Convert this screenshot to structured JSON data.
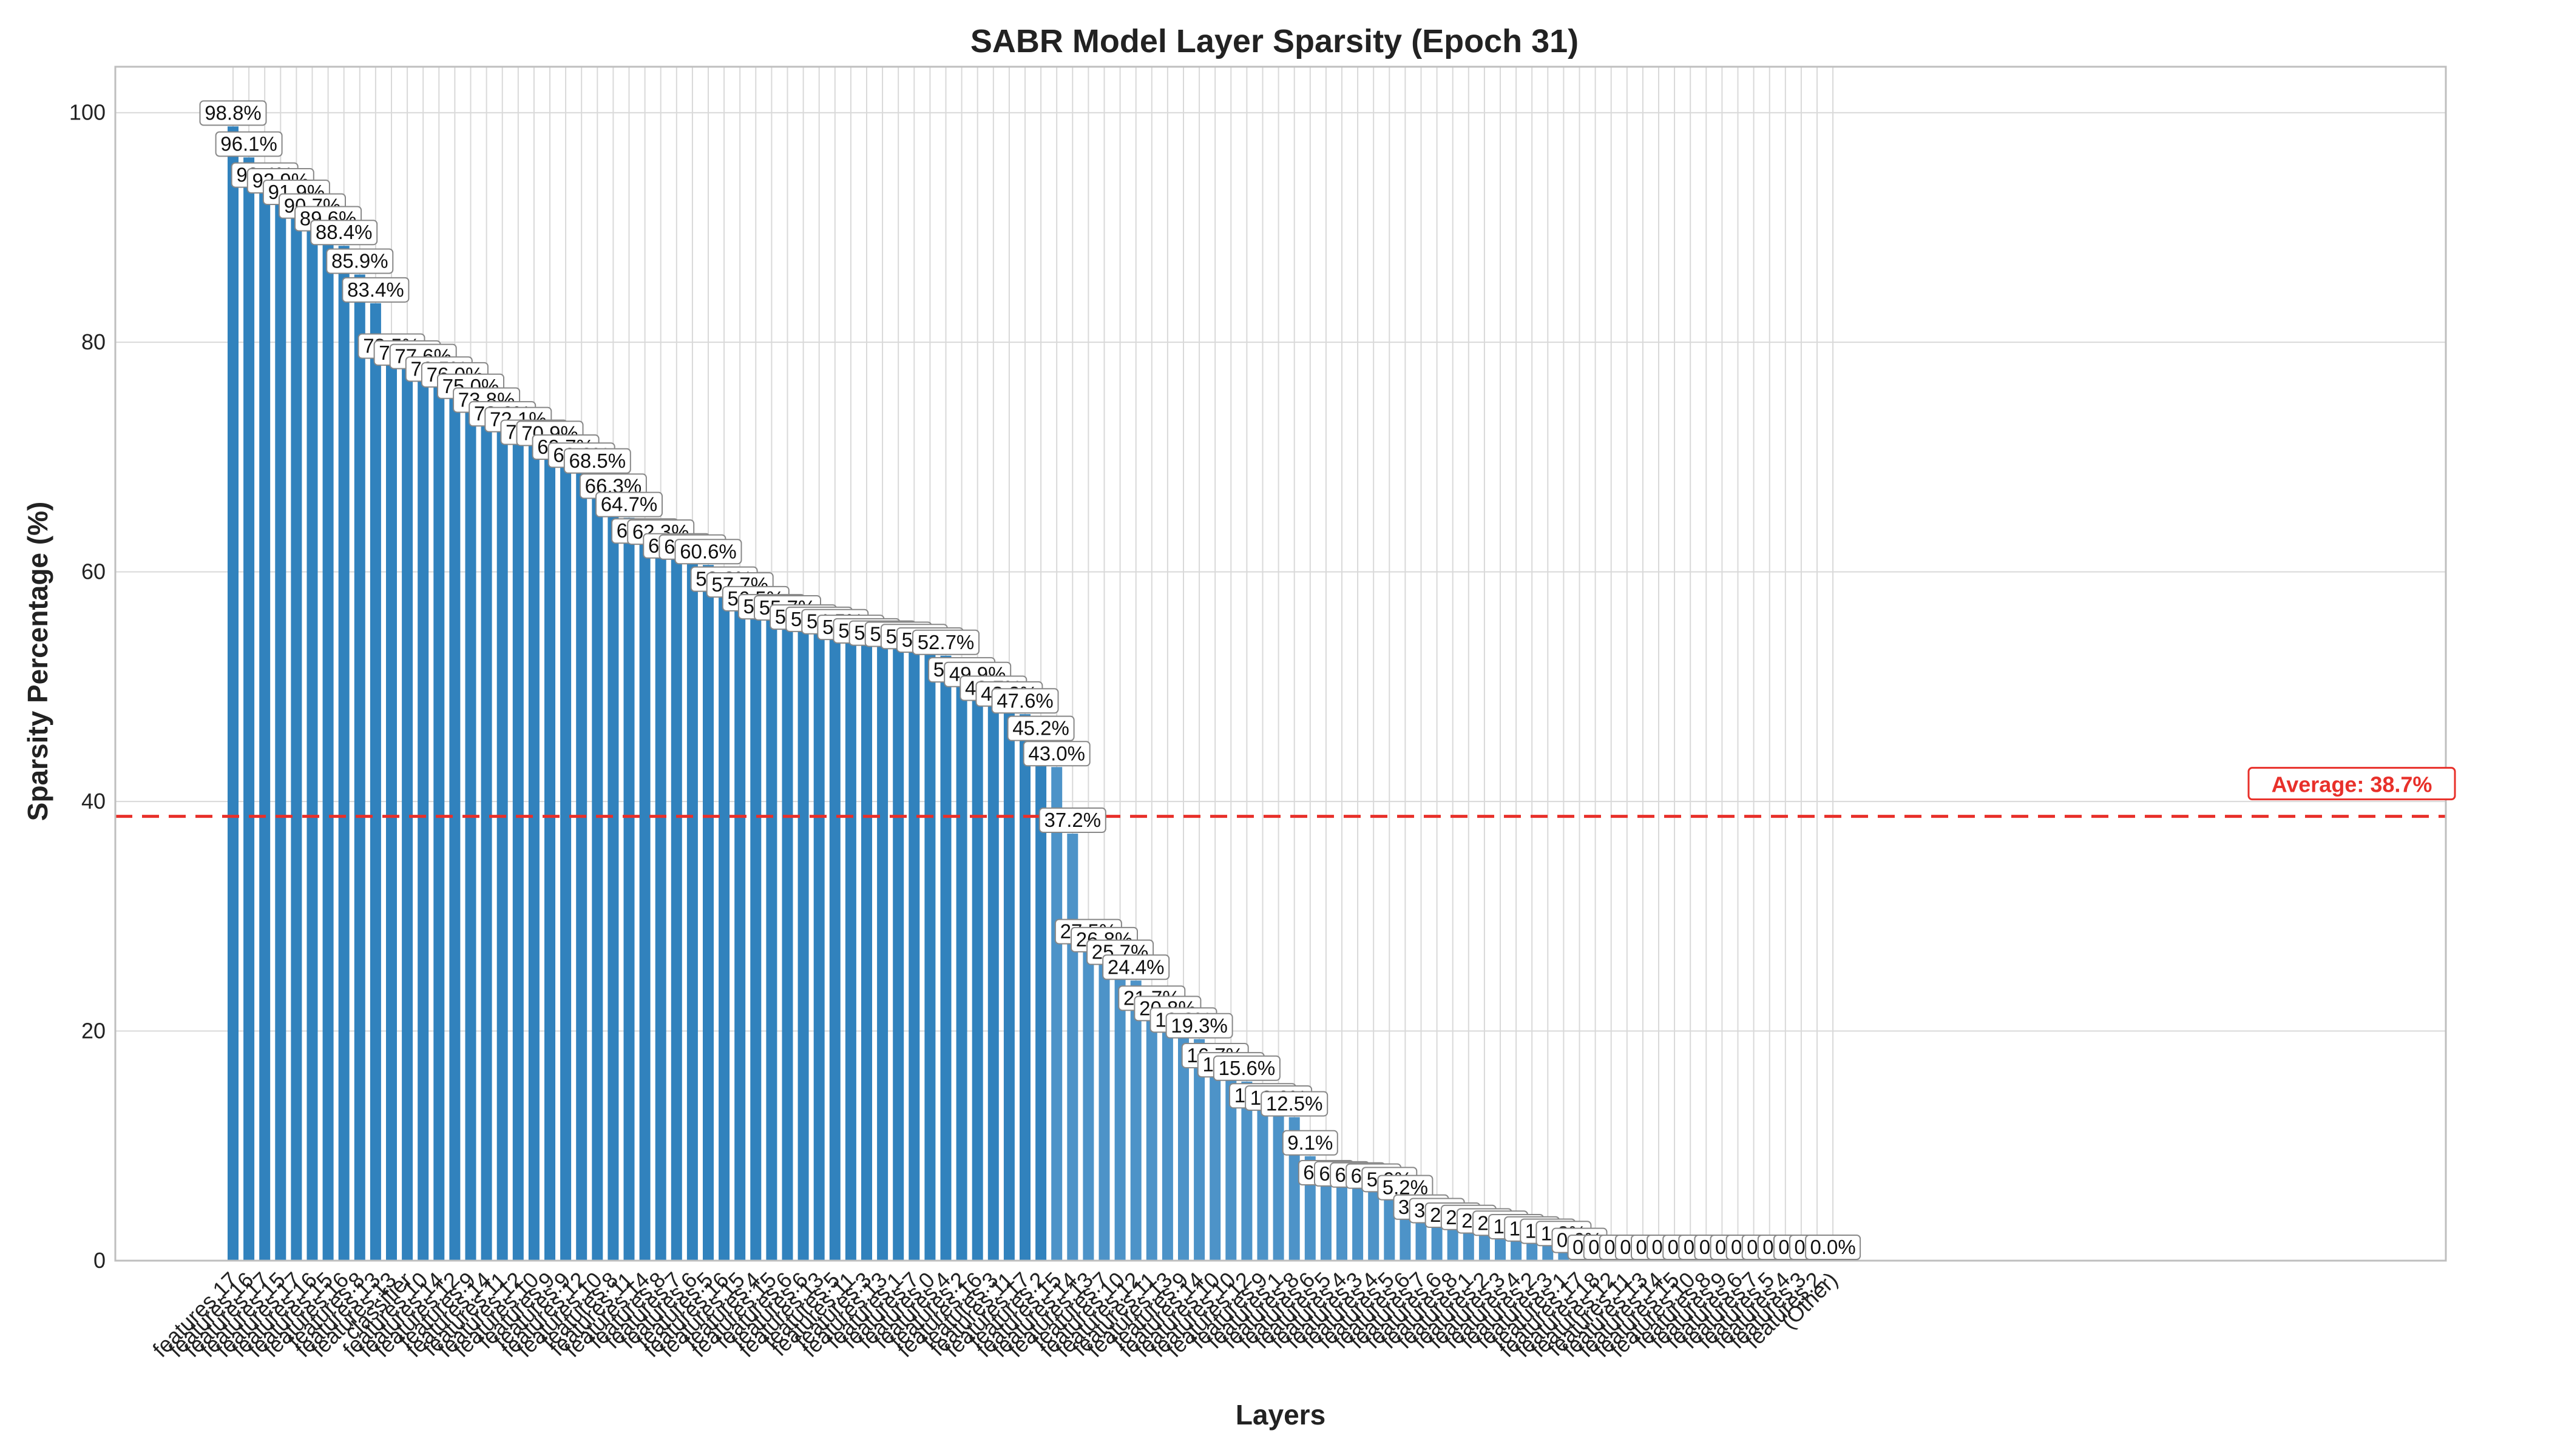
{
  "chart_data": {
    "type": "bar",
    "title": "SABR Model Layer Sparsity (Epoch 31)",
    "xlabel": "Layers",
    "ylabel": "Sparsity Percentage (%)",
    "ylim": [
      0,
      104
    ],
    "yticks": [
      0,
      20,
      40,
      60,
      80,
      100
    ],
    "grid": true,
    "bar_color": "#3182bd",
    "average": {
      "value": 38.7,
      "label": "Average: 38.7%",
      "color": "#e8302a"
    },
    "categories": [
      "features.17",
      "features.16",
      "features.17",
      "features.15",
      "features.17",
      "features.16",
      "features.15",
      "features.16",
      "features.8",
      "features.13",
      "features.13",
      "classifier",
      "features.10",
      "features.14",
      "features.12",
      "features.9",
      "features.14",
      "features.11",
      "features.12",
      "features.10",
      "features.9",
      "features.9",
      "features.12",
      "features.10",
      "features.8",
      "features.11",
      "features.14",
      "features.8",
      "features.7",
      "features.6",
      "features.5",
      "features.16",
      "features.15",
      "features.4",
      "features.15",
      "features.6",
      "features.6",
      "features.13",
      "features.5",
      "features.11",
      "features.3",
      "features.13",
      "features.1",
      "features.7",
      "features.0",
      "features.4",
      "features.2",
      "features.16",
      "features.3",
      "features.11",
      "features.17",
      "features.2",
      "features.15",
      "features.14",
      "features.13",
      "features.7",
      "features.10",
      "features.12",
      "features.11",
      "features.13",
      "features.9",
      "features.14",
      "features.10",
      "features.10",
      "features.12",
      "features.9",
      "features.1",
      "features.8",
      "features.6",
      "features.5",
      "features.4",
      "features.3",
      "features.4",
      "features.5",
      "features.6",
      "features.7",
      "features.6",
      "features.8",
      "features.1",
      "features.2",
      "features.3",
      "features.4",
      "features.2",
      "features.3",
      "features.1",
      "features.17",
      "features.18",
      "features.12",
      "features.11",
      "features.13",
      "features.14",
      "features.15",
      "features.10",
      "features.8",
      "features.9",
      "features.6",
      "features.7",
      "features.5",
      "features.4",
      "features.3",
      "features.2",
      "(Other)"
    ],
    "values": [
      98.8,
      96.1,
      93.4,
      92.9,
      91.9,
      90.7,
      89.6,
      88.4,
      85.9,
      83.4,
      78.5,
      77.9,
      77.6,
      76.5,
      76.0,
      75.0,
      73.8,
      72.6,
      72.1,
      71.0,
      70.9,
      69.7,
      69.0,
      68.5,
      66.3,
      64.7,
      62.4,
      62.3,
      61.1,
      61.0,
      60.6,
      58.2,
      57.7,
      56.5,
      55.8,
      55.7,
      54.9,
      54.7,
      54.5,
      54.0,
      53.7,
      53.5,
      53.4,
      53.2,
      52.9,
      52.7,
      50.3,
      49.9,
      48.7,
      48.2,
      47.6,
      45.2,
      43.0,
      37.2,
      27.5,
      26.8,
      25.7,
      24.4,
      21.7,
      20.8,
      19.8,
      19.3,
      16.7,
      15.9,
      15.6,
      13.2,
      13.0,
      12.5,
      9.1,
      6.5,
      6.4,
      6.3,
      6.2,
      5.9,
      5.2,
      3.5,
      3.2,
      2.8,
      2.6,
      2.3,
      2.1,
      1.8,
      1.6,
      1.4,
      1.2,
      0.6,
      0.0,
      0.0,
      0.0,
      0.0,
      0.0,
      0.0,
      0.0,
      0.0,
      0.0,
      0.0,
      0.0,
      0.0,
      0.0,
      0.0,
      0.0,
      0.0
    ],
    "labels": [
      "98.8%",
      "96.1%",
      "93.4%",
      "92.9%",
      "91.9%",
      "90.7%",
      "89.6%",
      "88.4%",
      "85.9%",
      "83.4%",
      "78.5%",
      "77.9%",
      "77.6%",
      "76.5%",
      "76.0%",
      "75.0%",
      "73.8%",
      "72.6%",
      "72.1%",
      "71.0%",
      "70.9%",
      "69.7%",
      "69.0%",
      "68.5%",
      "66.3%",
      "64.7%",
      "62.4%",
      "62.3%",
      "61.1%",
      "61.0%",
      "60.6%",
      "58.2%",
      "57.7%",
      "56.5%",
      "55.8%",
      "55.7%",
      "54.9%",
      "54.7%",
      "54.5%",
      "54.0%",
      "53.7%",
      "53.5%",
      "53.4%",
      "53.2%",
      "52.9%",
      "52.7%",
      "50.3%",
      "49.9%",
      "48.7%",
      "48.2%",
      "47.6%",
      "45.2%",
      "43.0%",
      "37.2%",
      "27.5%",
      "26.8%",
      "25.7%",
      "24.4%",
      "21.7%",
      "20.8%",
      "19.8%",
      "19.3%",
      "16.7%",
      "15.9%",
      "15.6%",
      "13.2%",
      "13.0%",
      "12.5%",
      "9.1%",
      "6.5%",
      "6.4%",
      "6.3%",
      "6.2%",
      "5.9%",
      "5.2%",
      "3.5%",
      "3.2%",
      "2.8%",
      "2.6%",
      "2.3%",
      "2.1%",
      "1.8%",
      "1.6%",
      "1.4%",
      "1.2%",
      "0.6%",
      "0.0%",
      "0.0%",
      "0.0%",
      "0.0%",
      "0.0%",
      "0.0%",
      "0.0%",
      "0.0%",
      "0.0%",
      "0.0%",
      "0.0%",
      "0.0%",
      "0.0%",
      "0.0%",
      "0.0%",
      "0.0%"
    ]
  }
}
